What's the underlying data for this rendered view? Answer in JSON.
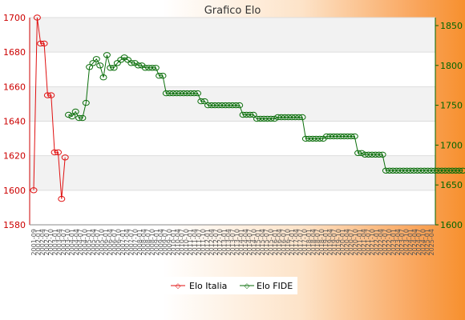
{
  "chart_data": {
    "type": "line",
    "title": "Grafico Elo",
    "y_left": {
      "min": 1580,
      "max": 1700,
      "ticks": [
        1580,
        1600,
        1620,
        1640,
        1660,
        1680,
        1700
      ],
      "color": "#cc0000"
    },
    "y_right": {
      "min": 1600,
      "max": 1860,
      "ticks": [
        1600,
        1650,
        1700,
        1750,
        1800,
        1850
      ],
      "color": "#006600"
    },
    "grid": true,
    "legend_position": "bottom",
    "x_count": 115,
    "series": [
      {
        "name": "Elo Italia",
        "axis": "left",
        "color": "#e01010",
        "values": [
          1600,
          1700,
          1685,
          1685,
          1655,
          1655,
          1622,
          1622,
          1595,
          1619
        ]
      },
      {
        "name": "Elo FIDE",
        "axis": "right",
        "color": "#0a6e0a",
        "start_index": 10,
        "values": [
          1738,
          1736,
          1742,
          1734,
          1734,
          1753,
          1798,
          1803,
          1808,
          1800,
          1785,
          1813,
          1797,
          1797,
          1803,
          1807,
          1810,
          1807,
          1803,
          1803,
          1800,
          1800,
          1797,
          1797,
          1797,
          1797,
          1787,
          1787,
          1765,
          1765,
          1765,
          1765,
          1765,
          1765,
          1765,
          1765,
          1765,
          1765,
          1755,
          1755,
          1750,
          1750,
          1750,
          1750,
          1750,
          1750,
          1750,
          1750,
          1750,
          1750,
          1738,
          1738,
          1738,
          1738,
          1733,
          1733,
          1733,
          1733,
          1733,
          1733,
          1735,
          1735,
          1735,
          1735,
          1735,
          1735,
          1735,
          1735,
          1708,
          1708,
          1708,
          1708,
          1708,
          1708,
          1711,
          1711,
          1711,
          1711,
          1711,
          1711,
          1711,
          1711,
          1711,
          1690,
          1690,
          1688,
          1688,
          1688,
          1688,
          1688,
          1688,
          1668,
          1668,
          1668,
          1668,
          1668,
          1668,
          1668,
          1668,
          1668,
          1668,
          1668,
          1668,
          1668,
          1668,
          1668,
          1668,
          1668,
          1668,
          1668,
          1668,
          1668,
          1668,
          1668
        ]
      }
    ],
    "tail_series_note": ""
  },
  "x_tick_labels": [
    "2001-09",
    "2002-01",
    "2002-04",
    "2002-07",
    "2002-10",
    "2003-01",
    "2003-04",
    "2003-07",
    "2003-10",
    "2004-01",
    "2004-04",
    "2004-07",
    "2004-10",
    "2005-01",
    "2005-04",
    "2005-07",
    "2005-10",
    "2006-01",
    "2006-04",
    "2006-07",
    "2006-10",
    "2007-01",
    "2007-04",
    "2007-07",
    "2007-10",
    "2008-01",
    "2008-04",
    "2008-07",
    "2008-10",
    "2009-01",
    "2009-04",
    "2009-07",
    "2009-10",
    "2010-01",
    "2010-04",
    "2010-07",
    "2010-10",
    "2011-01",
    "2011-04",
    "2011-07",
    "2011-10",
    "2012-01",
    "2012-04",
    "2012-07",
    "2012-10",
    "2013-01",
    "2013-04",
    "2013-07",
    "2013-10",
    "2014-01",
    "2014-04",
    "2014-07",
    "2014-10",
    "2015-01",
    "2015-04",
    "2015-07",
    "2015-10",
    "2016-01",
    "2016-04",
    "2016-07",
    "2016-10",
    "2017-01",
    "2017-04",
    "2017-07",
    "2017-10",
    "2018-01",
    "2018-04",
    "2018-07",
    "2018-10",
    "2019-01",
    "2019-04",
    "2019-07",
    "2019-10",
    "2020-01",
    "2020-04",
    "2020-07",
    "2020-10",
    "2021-01",
    "2021-04",
    "2021-07",
    "2021-10",
    "2022-01",
    "2022-04",
    "2022-07",
    "2022-10",
    "2023-01",
    "2023-04",
    "2023-07",
    "2023-10",
    "2024-01",
    "2024-04",
    "2024-07",
    "2024-10",
    "2025-01",
    "2025-04"
  ]
}
